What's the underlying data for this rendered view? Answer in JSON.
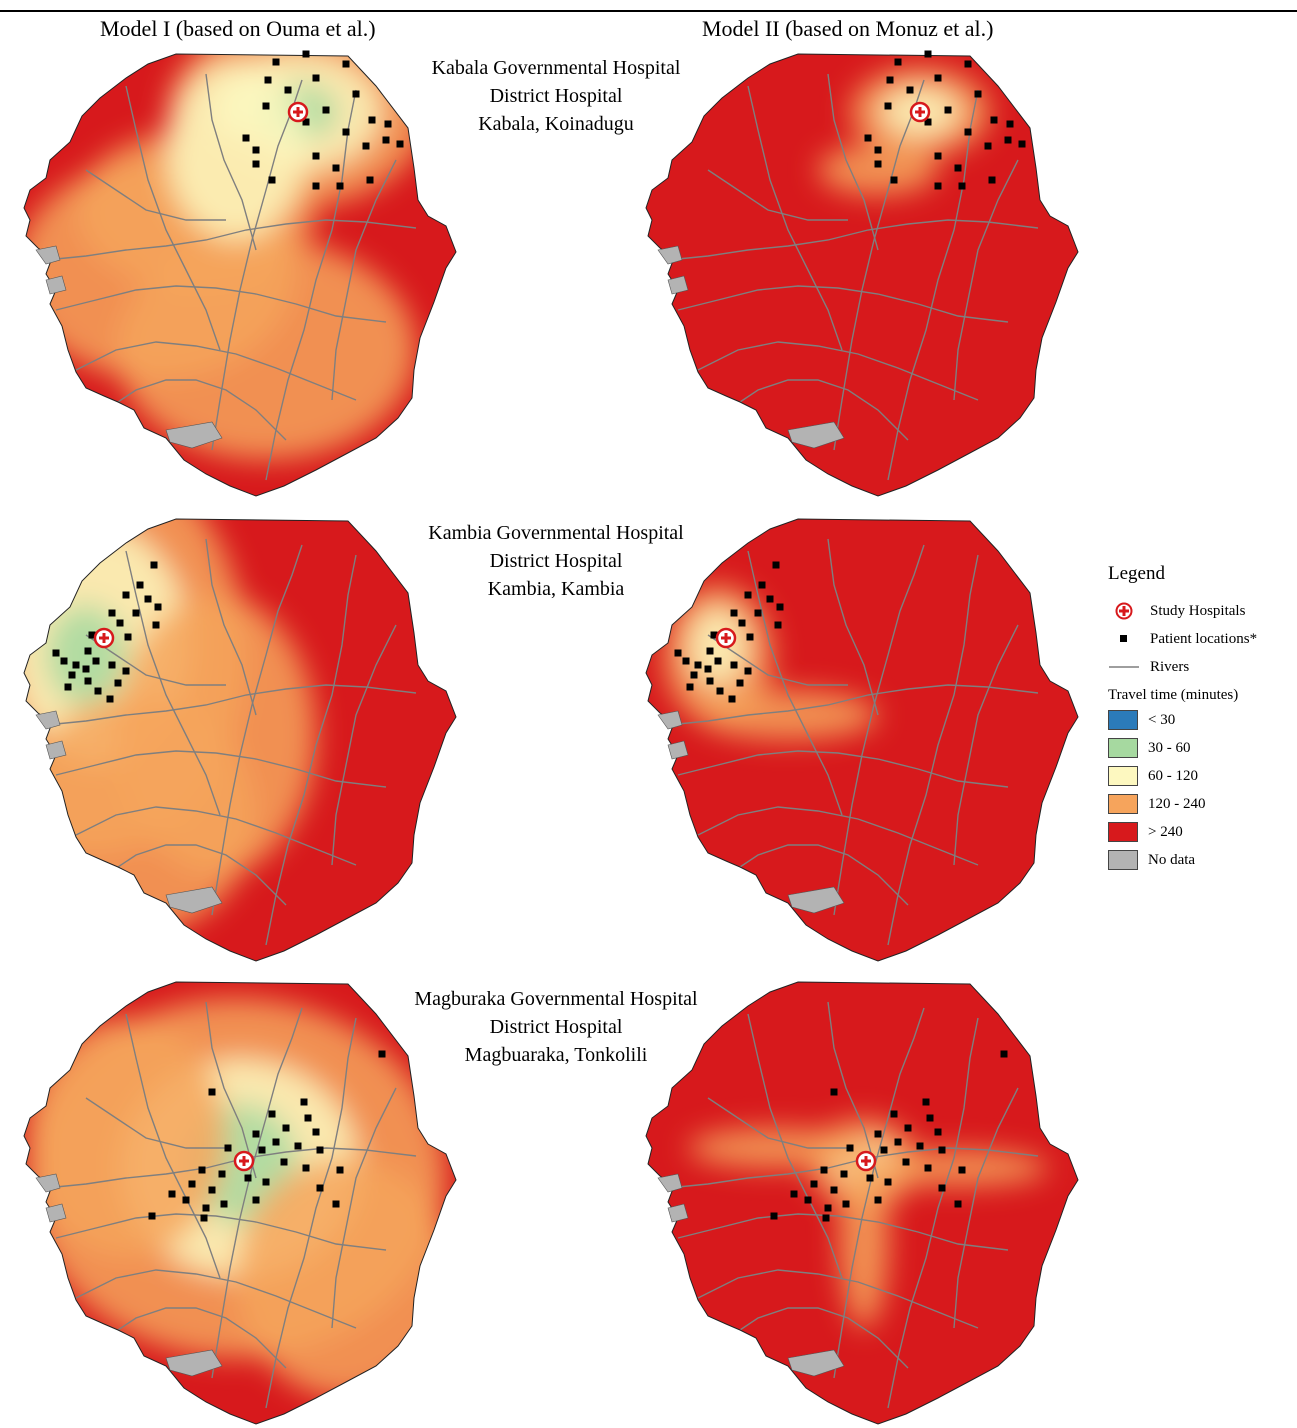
{
  "header": {
    "model1": "Model I (based on Ouma et al.)",
    "model2": "Model II (based on Monuz et al.)"
  },
  "hospitals": [
    {
      "line1": "Kabala Governmental Hospital",
      "line2": "District Hospital",
      "line3": "Kabala, Koinadugu"
    },
    {
      "line1": "Kambia Governmental Hospital",
      "line2": "District Hospital",
      "line3": "Kambia, Kambia"
    },
    {
      "line1": "Magburaka Governmental Hospital",
      "line2": "District Hospital",
      "line3": "Magbuaraka, Tonkolili"
    }
  ],
  "legend": {
    "title": "Legend",
    "study_hospitals": "Study Hospitals",
    "patient_locations": "Patient locations*",
    "rivers": "Rivers",
    "travel_time_title": "Travel time (minutes)",
    "classes": [
      {
        "label": "< 30",
        "color": "#2b7bba"
      },
      {
        "label": "30 - 60",
        "color": "#a6d9a0"
      },
      {
        "label": "60 - 120",
        "color": "#fdf8c0"
      },
      {
        "label": "120 - 240",
        "color": "#f6a45c"
      },
      {
        "label": "> 240",
        "color": "#d7191c"
      },
      {
        "label": "No data",
        "color": "#b3b3b3"
      }
    ]
  },
  "colors": {
    "map_red": "#d7191c",
    "river": "#7f7f7f",
    "hospital_marker": "#d7191c"
  }
}
